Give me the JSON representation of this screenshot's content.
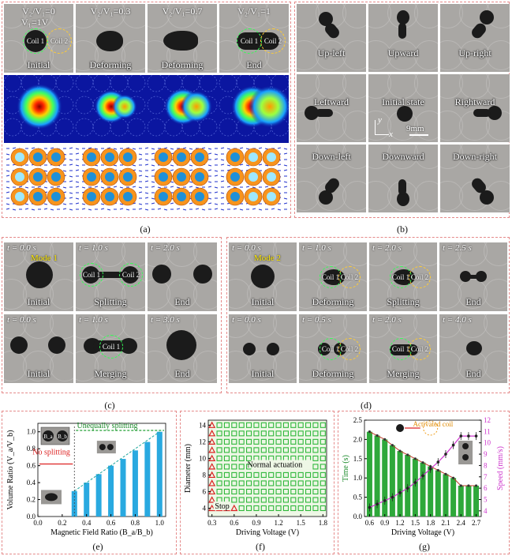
{
  "panel_a": {
    "ratios": [
      "V₂/V₁=0",
      "V₂/V₁=0.3",
      "V₂/V₁=0.7",
      "V₂/V₁=1"
    ],
    "v1_label": "V₁=1V",
    "coil1": "Coil 1",
    "coil2": "Coil 2",
    "labels": [
      "Initial",
      "Deforming",
      "Deforming",
      "End"
    ],
    "caption": "(a)"
  },
  "panel_b": {
    "labels": [
      "Up-left",
      "Upward",
      "Up-right",
      "Leftward",
      "Initial state",
      "Rightward",
      "Down-left",
      "Downward",
      "Down-right"
    ],
    "scale": "9mm",
    "axis_y": "y",
    "axis_x": "x",
    "caption": "(b)"
  },
  "panel_c": {
    "mode": "Mode 1",
    "row1_times": [
      "t = 0.0 s",
      "t = 1.0 s",
      "t = 2.0 s"
    ],
    "row1_labels": [
      "Initial",
      "Splitting",
      "End"
    ],
    "row2_times": [
      "t = 0.0 s",
      "t = 1.0 s",
      "t = 3.0 s"
    ],
    "row2_labels": [
      "Initial",
      "Merging",
      "End"
    ],
    "coil1": "Coil 1",
    "coil2": "Coil 2",
    "caption": "(c)"
  },
  "panel_d": {
    "mode": "Mode 2",
    "row1_times": [
      "t = 0.0 s",
      "t = 1.0 s",
      "t = 2.0 s",
      "t = 2.5 s"
    ],
    "row1_labels": [
      "Initial",
      "Deforming",
      "Splitting",
      "End"
    ],
    "row2_times": [
      "t = 0.0 s",
      "t = 0.5 s",
      "t = 2.0 s",
      "t = 4.0 s"
    ],
    "row2_labels": [
      "Initial",
      "Deforming",
      "Merging",
      "End"
    ],
    "coil1": "Coil 1",
    "coil2": "Coil 2",
    "caption": "(d)"
  },
  "chart_data": [
    {
      "type": "bar",
      "x": [
        0.3,
        0.4,
        0.5,
        0.6,
        0.7,
        0.8,
        0.9,
        1.0
      ],
      "values": [
        0.3,
        0.4,
        0.5,
        0.6,
        0.68,
        0.78,
        0.88,
        1.0
      ],
      "xlabel": "Magnetic Field Ratio (B_a/B_b)",
      "ylabel": "Volume Ratio (V_a/V_b)",
      "xticks": [
        "0.0",
        "0.2",
        "0.4",
        "0.6",
        "0.8",
        "1.0"
      ],
      "yticks": [
        "0.0",
        "0.2",
        "0.4",
        "0.6",
        "0.8",
        "1.0"
      ],
      "xlim": [
        0,
        1.05
      ],
      "ylim": [
        0,
        1.1
      ],
      "annotations": [
        "Unequally splitting",
        "No splitting",
        "B_a",
        "B_b"
      ],
      "color": "#29a9e0",
      "caption": "(e)"
    },
    {
      "type": "scatter",
      "xlabel": "Driving Voltage (V)",
      "ylabel": "Diameter (mm)",
      "xticks": [
        "0.3",
        "0.6",
        "0.9",
        "1.2",
        "1.5",
        "1.8"
      ],
      "yticks": [
        "4",
        "6",
        "8",
        "10",
        "12",
        "14"
      ],
      "xlim": [
        0.25,
        1.85
      ],
      "ylim": [
        3,
        14.6
      ],
      "stop_points": [
        [
          0.3,
          4
        ],
        [
          0.3,
          5
        ],
        [
          0.3,
          6
        ],
        [
          0.3,
          7
        ],
        [
          0.3,
          8
        ],
        [
          0.3,
          9
        ],
        [
          0.3,
          10
        ],
        [
          0.3,
          11
        ],
        [
          0.3,
          12
        ],
        [
          0.3,
          13
        ],
        [
          0.3,
          14
        ],
        [
          0.4,
          4
        ],
        [
          0.5,
          4
        ],
        [
          0.6,
          4
        ]
      ],
      "voltages": [
        0.3,
        0.4,
        0.5,
        0.6,
        0.7,
        0.8,
        0.9,
        1.0,
        1.1,
        1.2,
        1.3,
        1.4,
        1.5,
        1.6,
        1.7,
        1.8
      ],
      "diameters": [
        4,
        5,
        6,
        7,
        8,
        9,
        10,
        11,
        12,
        13,
        14
      ],
      "annotations": [
        "Normal actuation",
        "Stop"
      ],
      "caption": "(f)"
    },
    {
      "type": "bar",
      "x": [
        0.6,
        0.75,
        0.9,
        1.05,
        1.2,
        1.35,
        1.5,
        1.65,
        1.8,
        1.95,
        2.1,
        2.25,
        2.4,
        2.55,
        2.7
      ],
      "time_values": [
        2.2,
        2.1,
        2.0,
        1.85,
        1.7,
        1.6,
        1.5,
        1.4,
        1.3,
        1.2,
        1.1,
        1.0,
        0.8,
        0.8,
        0.8
      ],
      "speed_values": [
        4.3,
        4.6,
        4.9,
        5.2,
        5.6,
        6.0,
        6.5,
        7.1,
        7.7,
        8.3,
        9.0,
        9.8,
        10.6,
        10.6,
        10.6
      ],
      "xlabel": "Driving Voltage (V)",
      "ylabel_left": "Time (s)",
      "ylabel_right": "Speed (mm/s)",
      "xticks": [
        "0.6",
        "0.9",
        "1.2",
        "1.5",
        "1.8",
        "2.1",
        "2.4",
        "2.7"
      ],
      "yticks_left": [
        "0.0",
        "0.5",
        "1.0",
        "1.5",
        "2.0",
        "2.5"
      ],
      "yticks_right": [
        "4",
        "5",
        "6",
        "7",
        "8",
        "9",
        "10",
        "11",
        "12"
      ],
      "ylim_left": [
        0,
        2.5
      ],
      "ylim_right": [
        3.5,
        12
      ],
      "annotations": [
        "Activated coil"
      ],
      "colors": {
        "bar": "#2ea83a",
        "line": "#cc33cc",
        "time_line": "#c0392b"
      },
      "caption": "(g)"
    }
  ]
}
